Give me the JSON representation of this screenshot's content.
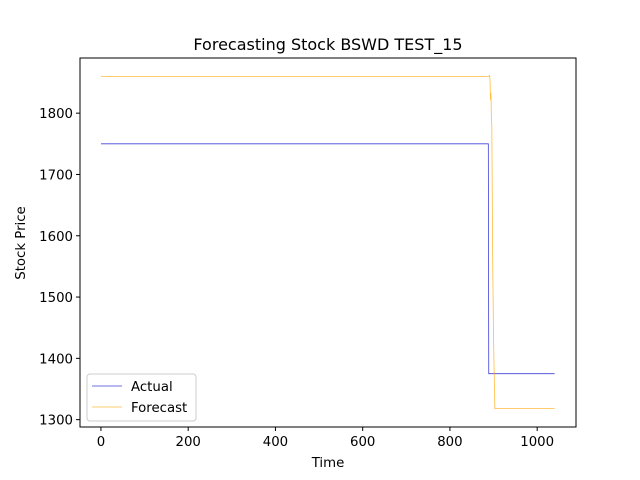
{
  "chart_data": {
    "type": "line",
    "title": "Forecasting Stock BSWD TEST_15",
    "xlabel": "Time",
    "ylabel": "Stock Price",
    "xlim": [
      -48,
      1089
    ],
    "ylim": [
      1288,
      1890
    ],
    "xticks": [
      0,
      200,
      400,
      600,
      800,
      1000
    ],
    "yticks": [
      1300,
      1400,
      1500,
      1600,
      1700,
      1800
    ],
    "grid": false,
    "legend_position": "lower-left",
    "series": [
      {
        "name": "Actual",
        "color": "#0000cc",
        "x": [
          0,
          888,
          889,
          1040
        ],
        "y": [
          1750,
          1750,
          1375,
          1375
        ]
      },
      {
        "name": "Forecast",
        "color": "#ffa500",
        "x": [
          0,
          890,
          891,
          892,
          893,
          894,
          895,
          896,
          898,
          900,
          903,
          1040
        ],
        "y": [
          1860,
          1860,
          1862,
          1852,
          1821,
          1833,
          1795,
          1780,
          1560,
          1430,
          1318,
          1318
        ]
      }
    ]
  }
}
